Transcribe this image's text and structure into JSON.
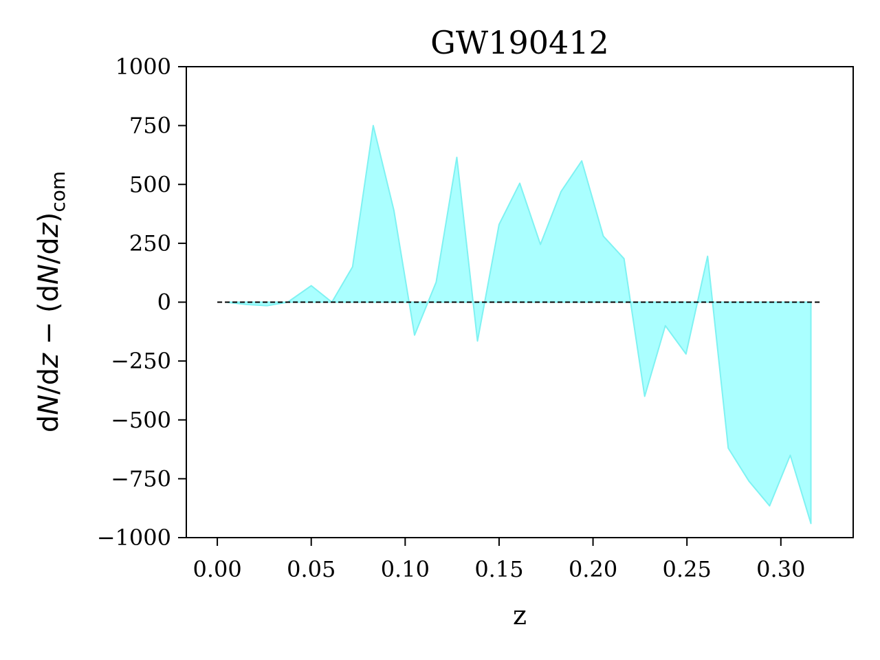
{
  "chart_data": {
    "type": "area",
    "title": "GW190412",
    "xlabel": "z",
    "ylabel_parts": {
      "lead": "d",
      "N1": "N",
      "mid1": "/d",
      "z1": "z",
      "minus": " − (d",
      "N2": "N",
      "mid2": "/d",
      "z2": "z",
      "close": ")",
      "sub": "com"
    },
    "xlim": [
      -0.0165,
      0.3385
    ],
    "ylim": [
      -1000,
      1000
    ],
    "xticks": [
      0.0,
      0.05,
      0.1,
      0.15,
      0.2,
      0.25,
      0.3
    ],
    "xtick_labels": [
      "0.00",
      "0.05",
      "0.10",
      "0.15",
      "0.20",
      "0.25",
      "0.30"
    ],
    "yticks": [
      1000,
      750,
      500,
      250,
      0,
      -250,
      -500,
      -750,
      -1000
    ],
    "ytick_labels": [
      "1000",
      "750",
      "500",
      "250",
      "0",
      "−250",
      "−500",
      "−750",
      "−1000"
    ],
    "reference_line": {
      "y": 0,
      "x_start": 0.0,
      "x_end": 0.3215,
      "style": "dashed",
      "color": "#000000"
    },
    "fill_color": "#aaffff",
    "edge_color": "#7ff2f2",
    "grid": false,
    "series": [
      {
        "x": [
          0.0045,
          0.0155,
          0.0265,
          0.0375,
          0.05,
          0.061,
          0.072,
          0.083,
          0.094,
          0.105,
          0.1165,
          0.1275,
          0.1385,
          0.15,
          0.161,
          0.172,
          0.183,
          0.194,
          0.2055,
          0.2165,
          0.2275,
          0.2385,
          0.2495,
          0.261,
          0.272,
          0.283,
          0.294,
          0.305,
          0.316
        ],
        "y": [
          0,
          -10,
          -15,
          0,
          70,
          0,
          150,
          750,
          390,
          -140,
          85,
          615,
          -165,
          330,
          505,
          245,
          470,
          600,
          280,
          185,
          -400,
          -100,
          -220,
          195,
          -620,
          -760,
          -865,
          -650,
          -940
        ]
      }
    ]
  }
}
